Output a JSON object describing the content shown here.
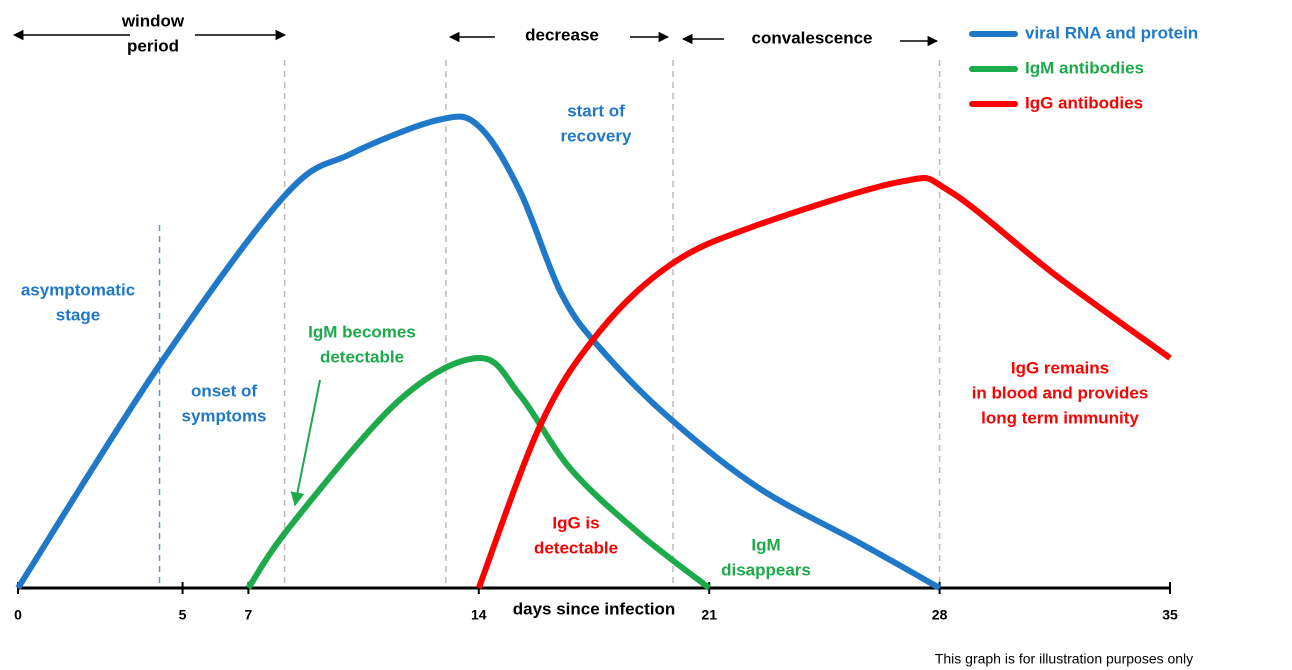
{
  "chart_data": {
    "type": "line",
    "xlabel": "days since infection",
    "note": "This graph is for illustration purposes only",
    "xlim": [
      0,
      35
    ],
    "xticks": [
      0,
      5,
      7,
      14,
      21,
      28,
      35
    ],
    "ylim": [
      0,
      110
    ],
    "legend": "top-right",
    "markers": [
      4.3,
      8.1,
      13,
      19.9,
      28
    ],
    "series": [
      {
        "name": "viral RNA and protein",
        "color": "#1f78c8",
        "x": [
          0,
          4.25,
          8.1,
          10.1,
          12.8,
          14,
          15.25,
          16.5,
          17.7,
          19.8,
          22.5,
          25.6,
          28
        ],
        "values": [
          0,
          47.6,
          84.6,
          93.6,
          101,
          99.6,
          85.6,
          63.6,
          51.6,
          36.6,
          21.6,
          9.6,
          0
        ]
      },
      {
        "name": "IgM antibodies",
        "color": "#1daa4a",
        "x": [
          7,
          8.3,
          11.6,
          14,
          15.25,
          16.8,
          18.9,
          21
        ],
        "values": [
          0,
          13.6,
          40.6,
          49.6,
          41.6,
          25.6,
          11.6,
          0
        ]
      },
      {
        "name": "IgG antibodies",
        "color": "#ff0000",
        "x": [
          14,
          15.9,
          17.7,
          19.8,
          22.2,
          26.8,
          28.3,
          31.5,
          35
        ],
        "values": [
          0,
          35.6,
          55.6,
          69.6,
          77.6,
          87.6,
          85.6,
          67.6,
          49.6
        ]
      }
    ],
    "annotations": [
      {
        "lines": [
          "window",
          "period"
        ],
        "color": "#000000"
      },
      {
        "lines": [
          "decrease"
        ],
        "color": "#000000"
      },
      {
        "lines": [
          "convalescence"
        ],
        "color": "#000000"
      },
      {
        "lines": [
          "start of",
          "recovery"
        ],
        "color": "#1f78c8"
      },
      {
        "lines": [
          "asymptomatic",
          "stage"
        ],
        "color": "#1f78c8"
      },
      {
        "lines": [
          "onset of",
          "symptoms"
        ],
        "color": "#1f78c8"
      },
      {
        "lines": [
          "IgM becomes",
          "detectable"
        ],
        "color": "#1daa4a"
      },
      {
        "lines": [
          "IgG is",
          "detectable"
        ],
        "color": "#ff0000"
      },
      {
        "lines": [
          "IgM",
          "disappears"
        ],
        "color": "#1daa4a"
      },
      {
        "lines": [
          "IgG remains",
          "in blood and provides",
          "long term immunity"
        ],
        "color": "#ff0000"
      }
    ]
  }
}
